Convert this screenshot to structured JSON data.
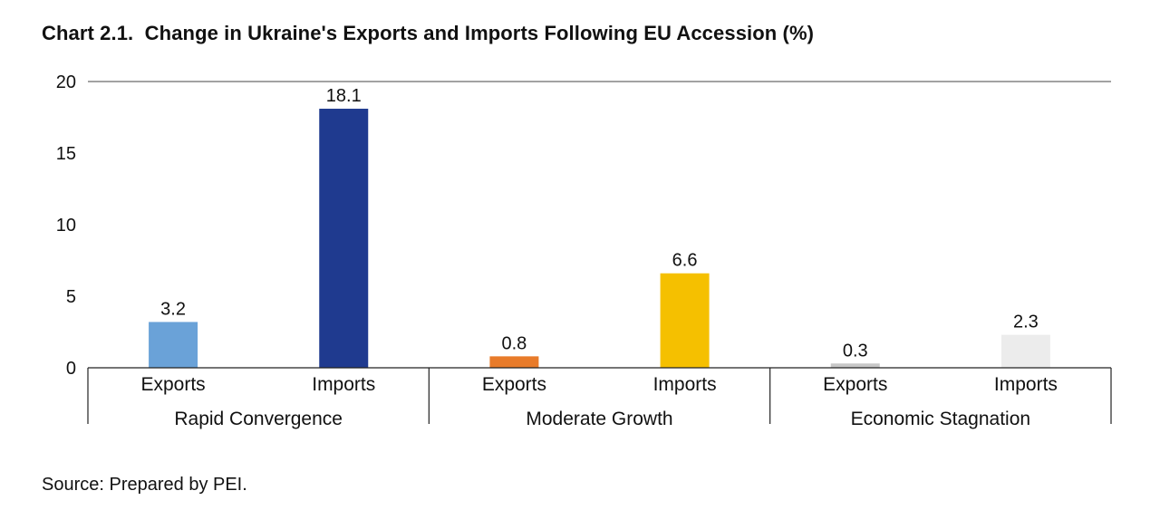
{
  "chart_data": {
    "type": "bar",
    "title": "Chart 2.1.  Change in Ukraine's Exports and Imports Following EU Accession (%)",
    "source": "Source: Prepared by PEI.",
    "ylim": [
      0,
      20
    ],
    "yticks": [
      0,
      5,
      10,
      15,
      20
    ],
    "grid": false,
    "groups": [
      {
        "label": "Rapid Convergence",
        "bars": [
          {
            "label": "Exports",
            "value": 3.2,
            "color": "#6aa2d8"
          },
          {
            "label": "Imports",
            "value": 18.1,
            "color": "#1f3a8f"
          }
        ]
      },
      {
        "label": "Moderate Growth",
        "bars": [
          {
            "label": "Exports",
            "value": 0.8,
            "color": "#e87b2a"
          },
          {
            "label": "Imports",
            "value": 6.6,
            "color": "#f5c000"
          }
        ]
      },
      {
        "label": "Economic Stagnation",
        "bars": [
          {
            "label": "Exports",
            "value": 0.3,
            "color": "#c7c7c7"
          },
          {
            "label": "Imports",
            "value": 2.3,
            "color": "#ececec"
          }
        ]
      }
    ]
  }
}
